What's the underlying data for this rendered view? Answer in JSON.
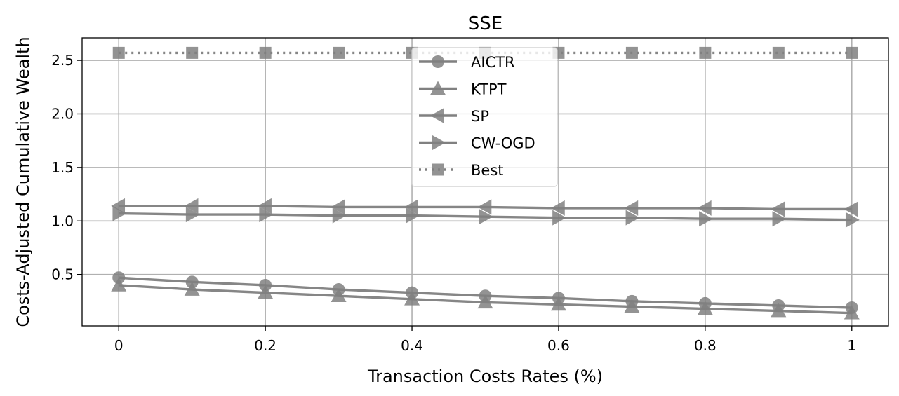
{
  "chart_data": {
    "type": "line",
    "title": "SSE",
    "xlabel": "Transaction Costs Rates (%)",
    "ylabel": "Costs-Adjusted Cumulative Wealth",
    "x": [
      0,
      0.1,
      0.2,
      0.3,
      0.4,
      0.5,
      0.6,
      0.7,
      0.8,
      0.9,
      1.0
    ],
    "xticks": [
      0,
      0.2,
      0.4,
      0.6,
      0.8,
      1.0
    ],
    "xtick_labels": [
      "0",
      "0.2",
      "0.4",
      "0.6",
      "0.8",
      "1"
    ],
    "yticks": [
      0.5,
      1.0,
      1.5,
      2.0,
      2.5
    ],
    "ytick_labels": [
      "0.5",
      "1.0",
      "1.5",
      "2.0",
      "2.5"
    ],
    "xlim": [
      -0.05,
      1.05
    ],
    "ylim": [
      0.02,
      2.71
    ],
    "grid": true,
    "legend_position": "top-center",
    "series": [
      {
        "name": "AICTR",
        "marker": "circle",
        "linestyle": "solid",
        "color": "#808080",
        "values": [
          0.47,
          0.43,
          0.4,
          0.36,
          0.33,
          0.3,
          0.28,
          0.25,
          0.23,
          0.21,
          0.19
        ]
      },
      {
        "name": "KTPT",
        "marker": "triangle-up",
        "linestyle": "solid",
        "color": "#808080",
        "values": [
          0.4,
          0.36,
          0.33,
          0.3,
          0.27,
          0.24,
          0.22,
          0.2,
          0.18,
          0.16,
          0.14
        ]
      },
      {
        "name": "SP",
        "marker": "triangle-left",
        "linestyle": "solid",
        "color": "#808080",
        "values": [
          1.14,
          1.14,
          1.14,
          1.13,
          1.13,
          1.13,
          1.12,
          1.12,
          1.12,
          1.11,
          1.11
        ]
      },
      {
        "name": "CW-OGD",
        "marker": "triangle-right",
        "linestyle": "solid",
        "color": "#808080",
        "values": [
          1.07,
          1.06,
          1.06,
          1.05,
          1.05,
          1.04,
          1.03,
          1.03,
          1.02,
          1.02,
          1.01
        ]
      },
      {
        "name": "Best",
        "marker": "square",
        "linestyle": "dotted",
        "color": "#808080",
        "values": [
          2.57,
          2.57,
          2.57,
          2.57,
          2.57,
          2.57,
          2.57,
          2.57,
          2.57,
          2.57,
          2.57
        ]
      }
    ]
  }
}
